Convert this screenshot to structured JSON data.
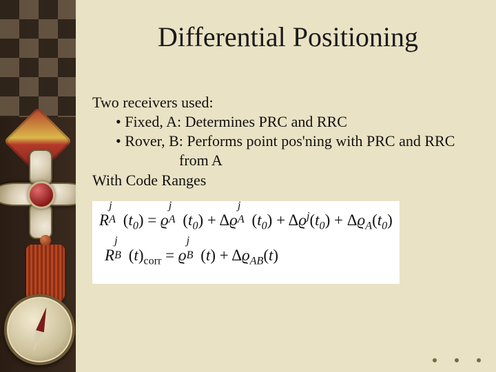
{
  "colors": {
    "slide_bg": "#e9e2c4",
    "strip_bg_from": "#2a1d14",
    "strip_bg_to": "#3a2a1e",
    "text": "#111111",
    "eq_bg": "#ffffff"
  },
  "typography": {
    "title_fontsize": 40,
    "body_fontsize": 22,
    "eq_fontsize": 23,
    "font_family": "Times New Roman"
  },
  "title": "Differential Positioning",
  "body": {
    "line1": "Two receivers used:",
    "bullet1": "• Fixed, A: Determines PRC and RRC",
    "bullet2": "• Rover, B: Performs point pos'ning with PRC and RRC",
    "bullet2b": "from A",
    "line2": "With Code Ranges"
  },
  "equations": {
    "eq1": {
      "lhs_base": "R",
      "lhs_sup": "j",
      "lhs_sub": "A",
      "lhs_arg": "t",
      "lhs_argsub": "0",
      "eq_sign": "=",
      "t1_base": "ϱ",
      "t1_sup": "j",
      "t1_sub": "A",
      "t1_arg": "t",
      "t1_argsub": "0",
      "plus": "+",
      "delta": "Δ",
      "t2_base": "ϱ",
      "t2_sup": "j",
      "t2_sub": "A",
      "t2_arg": "t",
      "t2_argsub": "0",
      "t3_base": "ϱ",
      "t3_sup": "j",
      "t3_arg": "t",
      "t3_argsub": "0",
      "t4_base": "ϱ",
      "t4_sub": "A",
      "t4_arg": "t",
      "t4_argsub": "0"
    },
    "eq2": {
      "lhs_base": "R",
      "lhs_sup": "j",
      "lhs_sub": "B",
      "lhs_arg": "t",
      "corr": "corr",
      "eq_sign": "=",
      "t1_base": "ϱ",
      "t1_sup": "j",
      "t1_sub": "B",
      "t1_arg": "t",
      "plus": "+",
      "delta": "Δ",
      "t2_base": "ϱ",
      "t2_sub": "AB",
      "t2_arg": "t"
    }
  }
}
